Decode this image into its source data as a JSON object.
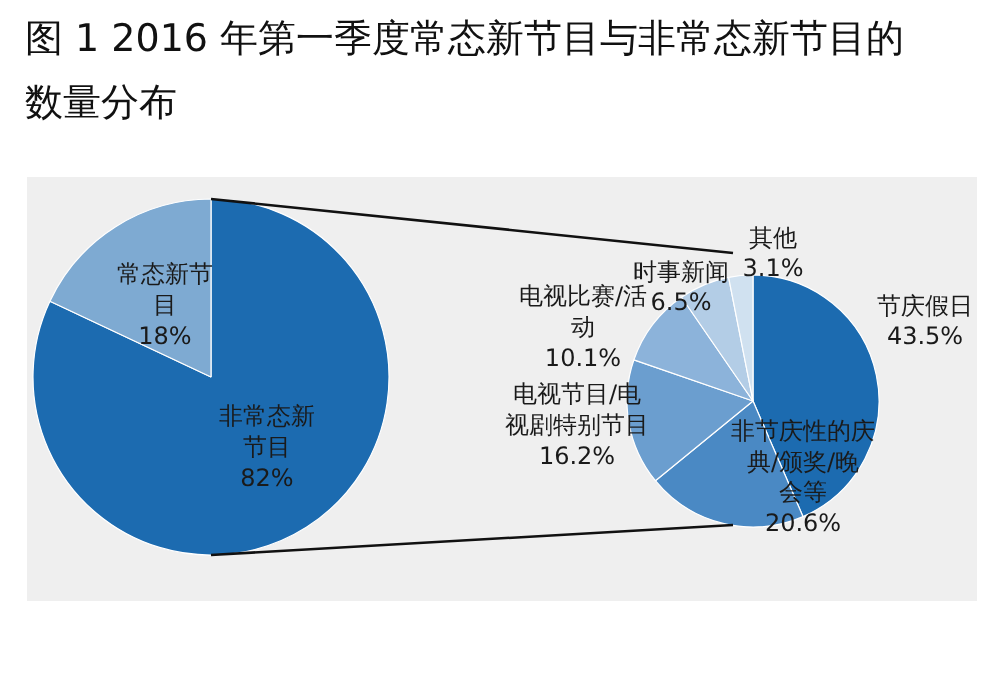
{
  "chart_data": [
    {
      "type": "pie",
      "title": "图 1 2016 年第一季度常态新节目与非常态新节目的数量分布",
      "categories": [
        "非常态新节目",
        "常态新节目"
      ],
      "values": [
        82,
        18
      ],
      "colors": [
        "#1c6bb0",
        "#7eaad2"
      ],
      "value_labels": [
        "82%",
        "18%"
      ]
    },
    {
      "type": "pie",
      "categories": [
        "节庆假日",
        "非节庆性的庆典/颁奖/晚会等",
        "电视节目/电视剧特别节目",
        "电视比赛/活动",
        "时事新闻",
        "其他"
      ],
      "values": [
        43.5,
        20.6,
        16.2,
        10.1,
        6.5,
        3.1
      ],
      "colors": [
        "#1c6bb0",
        "#4a89c4",
        "#6b9ecf",
        "#8cb3da",
        "#b3cde6",
        "#d0e1f0"
      ],
      "value_labels": [
        "43.5%",
        "20.6%",
        "16.2%",
        "10.1%",
        "6.5%",
        "3.1%"
      ]
    }
  ]
}
